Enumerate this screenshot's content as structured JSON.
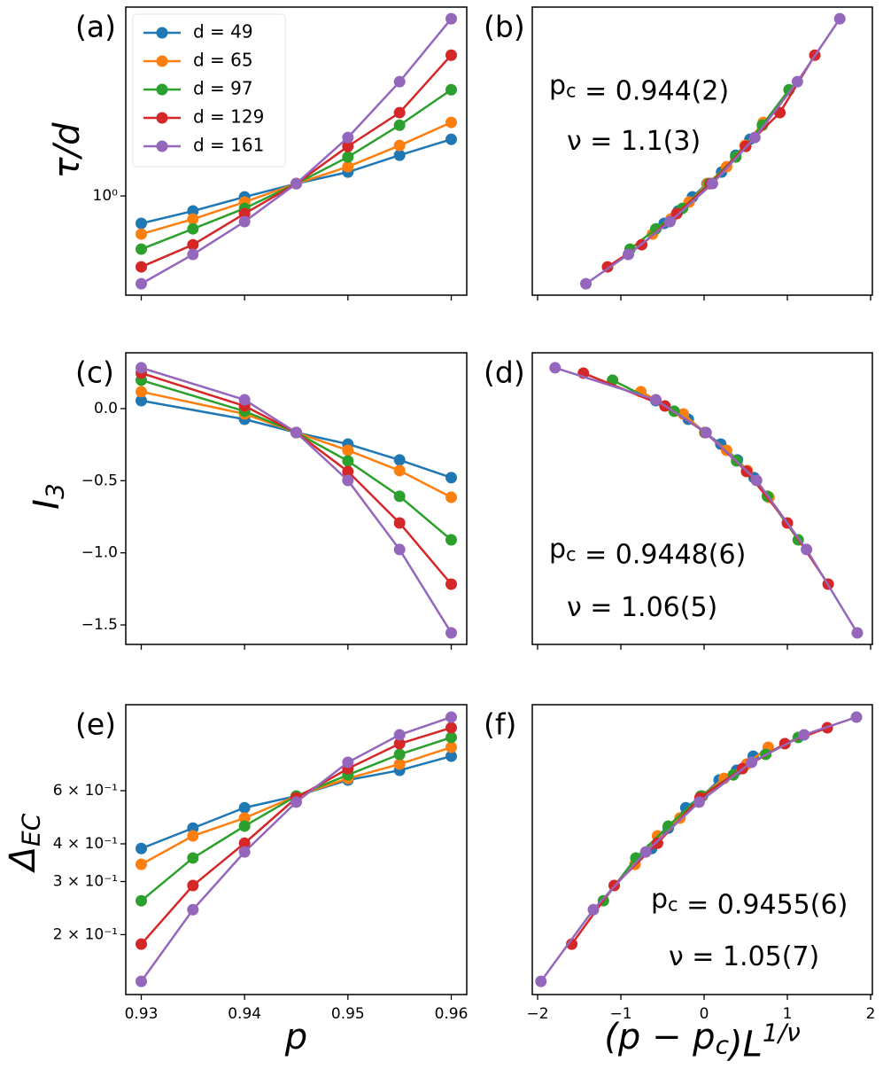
{
  "chart_data": [
    {
      "type": "line",
      "label": "(a)",
      "log_y": true,
      "x": [
        0.93,
        0.935,
        0.94,
        0.945,
        0.95,
        0.955,
        0.96
      ],
      "series": [
        {
          "name": "d = 49",
          "color": "#1f77b4",
          "values": [
            0.864,
            0.923,
            0.995,
            1.068,
            1.136,
            1.243,
            1.353
          ]
        },
        {
          "name": "d = 65",
          "color": "#ff7f0e",
          "values": [
            0.816,
            0.884,
            0.968,
            1.068,
            1.169,
            1.309,
            1.481
          ]
        },
        {
          "name": "d = 97",
          "color": "#2ca02c",
          "values": [
            0.753,
            0.839,
            0.936,
            1.068,
            1.231,
            1.459,
            1.763
          ]
        },
        {
          "name": "d = 129",
          "color": "#d62728",
          "values": [
            0.685,
            0.771,
            0.91,
            1.068,
            1.303,
            1.56,
            2.12
          ]
        },
        {
          "name": "d = 161",
          "color": "#9467bd",
          "values": [
            0.626,
            0.732,
            0.872,
            1.068,
            1.366,
            1.84,
            2.575
          ]
        }
      ],
      "xlim": [
        0.9285,
        0.9615
      ],
      "ylim": [
        0.589,
        2.74
      ],
      "yticks": [
        {
          "value": 1,
          "label": "10⁰"
        }
      ],
      "ylabel": [
        "τ/d"
      ],
      "legend": "upper left"
    },
    {
      "type": "line",
      "label": "(b)",
      "log_y": true,
      "series": [
        {
          "color": "#1f77b4",
          "x": [
            -0.48,
            -0.31,
            -0.14,
            0.034,
            0.21,
            0.38,
            0.55
          ],
          "values": [
            0.864,
            0.923,
            0.995,
            1.068,
            1.136,
            1.243,
            1.353
          ]
        },
        {
          "color": "#ff7f0e",
          "x": [
            -0.62,
            -0.4,
            -0.18,
            0.04,
            0.27,
            0.49,
            0.71
          ],
          "values": [
            0.816,
            0.884,
            0.968,
            1.068,
            1.169,
            1.309,
            1.481
          ]
        },
        {
          "color": "#2ca02c",
          "x": [
            -0.89,
            -0.58,
            -0.26,
            0.06,
            0.38,
            0.7,
            1.02
          ],
          "values": [
            0.753,
            0.839,
            0.936,
            1.068,
            1.231,
            1.459,
            1.763
          ]
        },
        {
          "color": "#d62728",
          "x": [
            -1.16,
            -0.75,
            -0.33,
            0.08,
            0.5,
            0.91,
            1.33
          ],
          "values": [
            0.685,
            0.771,
            0.91,
            1.068,
            1.303,
            1.56,
            2.12
          ]
        },
        {
          "color": "#9467bd",
          "x": [
            -1.42,
            -0.91,
            -0.41,
            0.1,
            0.61,
            1.12,
            1.63
          ],
          "values": [
            0.626,
            0.732,
            0.872,
            1.068,
            1.366,
            1.84,
            2.575
          ]
        }
      ],
      "xlim": [
        -2.064,
        2.021
      ],
      "ylim": [
        0.589,
        2.74
      ],
      "annotations": [
        [
          "p",
          {
            "sub": "c"
          },
          " = 0.944(2)"
        ],
        [
          "ν = 1.1(3)"
        ]
      ]
    },
    {
      "type": "line",
      "label": "(c)",
      "log_y": false,
      "x": [
        0.93,
        0.94,
        0.945,
        0.95,
        0.955,
        0.96
      ],
      "series": [
        {
          "color": "#1f77b4",
          "values": [
            0.055,
            -0.074,
            -0.166,
            -0.246,
            -0.356,
            -0.479
          ]
        },
        {
          "color": "#ff7f0e",
          "values": [
            0.117,
            -0.037,
            -0.166,
            -0.289,
            -0.43,
            -0.615
          ]
        },
        {
          "color": "#2ca02c",
          "values": [
            0.197,
            -0.018,
            -0.166,
            -0.363,
            -0.608,
            -0.91
          ]
        },
        {
          "color": "#d62728",
          "values": [
            0.246,
            0.018,
            -0.166,
            -0.436,
            -0.793,
            -1.217
          ]
        },
        {
          "color": "#9467bd",
          "values": [
            0.283,
            0.061,
            -0.166,
            -0.498,
            -0.977,
            -1.555
          ]
        }
      ],
      "xlim": [
        0.9285,
        0.9615
      ],
      "ylim": [
        -1.635,
        0.387
      ],
      "yticks": [
        {
          "value": -1.5,
          "label": "−1.5"
        },
        {
          "value": -1.0,
          "label": "−1.0"
        },
        {
          "value": -0.5,
          "label": "−0.5"
        },
        {
          "value": 0.0,
          "label": "0.0"
        }
      ],
      "ylabel": [
        "I",
        {
          "sub": "3"
        }
      ]
    },
    {
      "type": "line",
      "label": "(d)",
      "log_y": false,
      "series": [
        {
          "color": "#1f77b4",
          "x": [
            -0.58,
            -0.19,
            0.008,
            0.2,
            0.4,
            0.6
          ],
          "values": [
            0.055,
            -0.074,
            -0.166,
            -0.246,
            -0.356,
            -0.479
          ]
        },
        {
          "color": "#ff7f0e",
          "x": [
            -0.76,
            -0.25,
            0.01,
            0.27,
            0.52,
            0.78
          ],
          "values": [
            0.117,
            -0.037,
            -0.166,
            -0.289,
            -0.43,
            -0.615
          ]
        },
        {
          "color": "#2ca02c",
          "x": [
            -1.1,
            -0.36,
            0.015,
            0.39,
            0.76,
            1.13
          ],
          "values": [
            0.197,
            -0.018,
            -0.166,
            -0.363,
            -0.608,
            -0.91
          ]
        },
        {
          "color": "#d62728",
          "x": [
            -1.45,
            -0.47,
            0.02,
            0.51,
            1.0,
            1.49
          ],
          "values": [
            0.246,
            0.018,
            -0.166,
            -0.436,
            -0.793,
            -1.217
          ]
        },
        {
          "color": "#9467bd",
          "x": [
            -1.79,
            -0.58,
            0.024,
            0.63,
            1.23,
            1.84
          ],
          "values": [
            0.283,
            0.061,
            -0.166,
            -0.498,
            -0.977,
            -1.555
          ]
        }
      ],
      "xlim": [
        -2.064,
        2.021
      ],
      "ylim": [
        -1.635,
        0.387
      ],
      "annotations": [
        [
          "p",
          {
            "sub": "c"
          },
          " = 0.9448(6)"
        ],
        [
          "ν = 1.06(5)"
        ]
      ]
    },
    {
      "type": "line",
      "label": "(e)",
      "log_y": true,
      "x": [
        0.93,
        0.935,
        0.94,
        0.945,
        0.95,
        0.955,
        0.96
      ],
      "series": [
        {
          "color": "#1f77b4",
          "values": [
            0.386,
            0.451,
            0.527,
            0.576,
            0.651,
            0.701,
            0.781
          ]
        },
        {
          "color": "#ff7f0e",
          "values": [
            0.342,
            0.425,
            0.487,
            0.576,
            0.659,
            0.735,
            0.836
          ]
        },
        {
          "color": "#2ca02c",
          "values": [
            0.259,
            0.359,
            0.458,
            0.576,
            0.677,
            0.792,
            0.901
          ]
        },
        {
          "color": "#d62728",
          "values": [
            0.186,
            0.291,
            0.402,
            0.568,
            0.71,
            0.859,
            0.97
          ]
        },
        {
          "color": "#9467bd",
          "values": [
            0.14,
            0.242,
            0.376,
            0.55,
            0.745,
            0.919,
            1.052
          ]
        }
      ],
      "xlim": [
        0.9285,
        0.9615
      ],
      "ylim": [
        0.1266,
        1.157
      ],
      "xticks": [
        0.93,
        0.94,
        0.95,
        0.96
      ],
      "yticks": [
        {
          "value": 0.2,
          "label": "2 × 10⁻¹"
        },
        {
          "value": 0.3,
          "label": "3 × 10⁻¹"
        },
        {
          "value": 0.4,
          "label": "4 × 10⁻¹"
        },
        {
          "value": 0.6,
          "label": "6 × 10⁻¹"
        }
      ],
      "ylabel": [
        "Δ",
        {
          "sub": "EC"
        }
      ],
      "xlabel": [
        "p"
      ]
    },
    {
      "type": "line",
      "label": "(f)",
      "log_y": true,
      "series": [
        {
          "color": "#1f77b4",
          "x": [
            -0.63,
            -0.43,
            -0.22,
            -0.02,
            0.18,
            0.39,
            0.59
          ],
          "values": [
            0.386,
            0.451,
            0.527,
            0.576,
            0.651,
            0.701,
            0.781
          ]
        },
        {
          "color": "#ff7f0e",
          "x": [
            -0.83,
            -0.56,
            -0.29,
            -0.03,
            0.24,
            0.51,
            0.77
          ],
          "values": [
            0.342,
            0.425,
            0.487,
            0.576,
            0.659,
            0.735,
            0.836
          ]
        },
        {
          "color": "#2ca02c",
          "x": [
            -1.21,
            -0.82,
            -0.43,
            -0.04,
            0.35,
            0.74,
            1.13
          ],
          "values": [
            0.259,
            0.359,
            0.458,
            0.576,
            0.677,
            0.792,
            0.901
          ]
        },
        {
          "color": "#d62728",
          "x": [
            -1.59,
            -1.08,
            -0.56,
            -0.05,
            0.46,
            0.97,
            1.48
          ],
          "values": [
            0.186,
            0.291,
            0.402,
            0.568,
            0.71,
            0.859,
            0.97
          ]
        },
        {
          "color": "#9467bd",
          "x": [
            -1.96,
            -1.33,
            -0.7,
            -0.06,
            0.57,
            1.2,
            1.83
          ],
          "values": [
            0.14,
            0.242,
            0.376,
            0.55,
            0.745,
            0.919,
            1.052
          ]
        }
      ],
      "xlim": [
        -2.064,
        2.021
      ],
      "ylim": [
        0.1266,
        1.157
      ],
      "xticks": [
        {
          "value": -2,
          "label": "−2"
        },
        {
          "value": -1,
          "label": "−1"
        },
        0,
        1,
        2
      ],
      "annotations": [
        [
          "p",
          {
            "sub": "c"
          },
          " = 0.9455(6)"
        ],
        [
          "ν = 1.05(7)"
        ]
      ],
      "xlabel": [
        "(p − p",
        {
          "sub": "c"
        },
        ")L",
        {
          "sup": "1/ν"
        }
      ]
    }
  ]
}
